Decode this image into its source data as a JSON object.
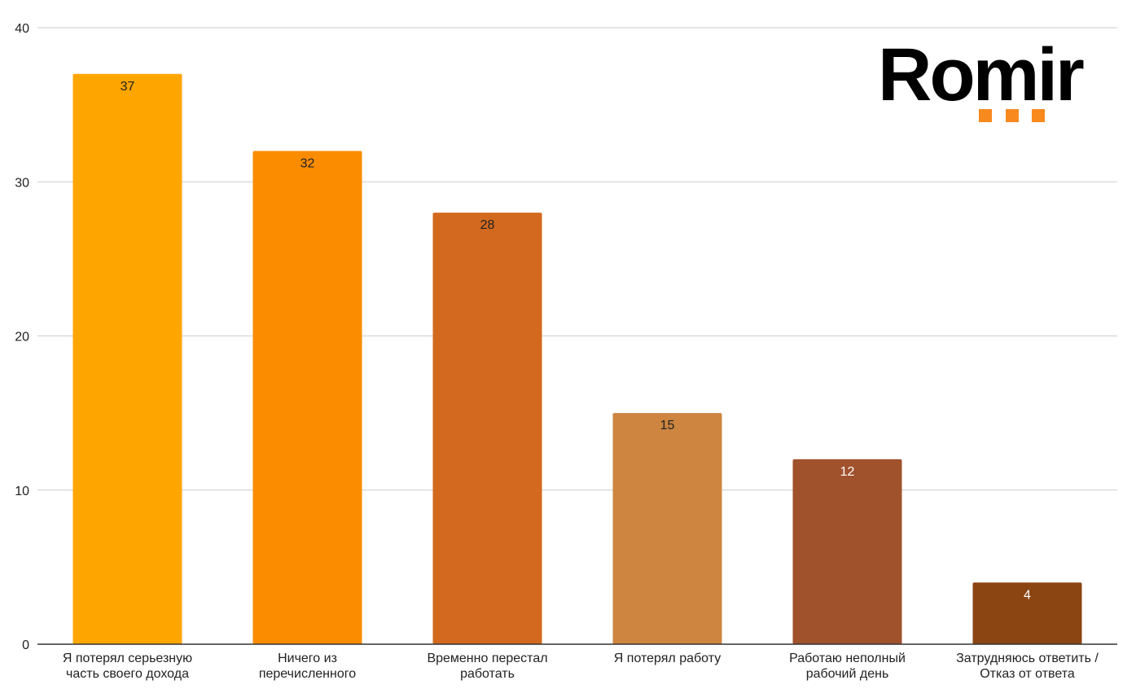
{
  "brand": {
    "name": "Romir",
    "dot_color": "#F7891F",
    "dots": 3
  },
  "chart_data": {
    "type": "bar",
    "title": "",
    "xlabel": "",
    "ylabel": "",
    "ylim": [
      0,
      40
    ],
    "yticks": [
      0,
      10,
      20,
      30,
      40
    ],
    "grid": true,
    "legend": "none",
    "categories": [
      [
        "Я потерял серьезную",
        "часть своего дохода"
      ],
      [
        "Ничего из",
        "перечисленного"
      ],
      [
        "Временно перестал",
        "работать"
      ],
      [
        "Я потерял работу"
      ],
      [
        "Работаю неполный",
        "рабочий день"
      ],
      [
        "Затрудняюсь ответить /",
        "Отказ от ответа"
      ]
    ],
    "values": [
      37,
      32,
      28,
      15,
      12,
      4
    ],
    "bar_colors": [
      "#FFA500",
      "#FB8C00",
      "#D2691E",
      "#CD853F",
      "#A0522D",
      "#8B4513"
    ],
    "label_colors": [
      "#222222",
      "#222222",
      "#222222",
      "#222222",
      "#ffffff",
      "#ffffff"
    ]
  }
}
